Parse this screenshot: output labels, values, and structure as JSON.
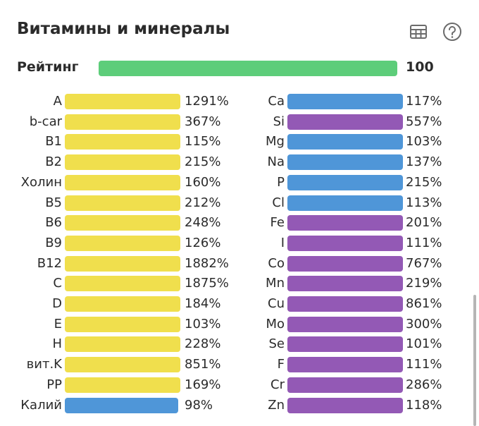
{
  "header": {
    "title": "Витамины и минералы",
    "icons": [
      "table-icon",
      "help-icon"
    ]
  },
  "rating": {
    "label": "Рейтинг",
    "value": "100",
    "fill_percent": 100,
    "color": "#5dcd7a"
  },
  "colors": {
    "vitamin": "#f0df4d",
    "blue_mineral": "#4f96d8",
    "purple_mineral": "#9359b5",
    "text": "#2b2b2b"
  },
  "vitamins": [
    {
      "label": "A",
      "value": "1291%",
      "color": "yellow"
    },
    {
      "label": "b-car",
      "value": "367%",
      "color": "yellow"
    },
    {
      "label": "B1",
      "value": "115%",
      "color": "yellow"
    },
    {
      "label": "B2",
      "value": "215%",
      "color": "yellow"
    },
    {
      "label": "Холин",
      "value": "160%",
      "color": "yellow"
    },
    {
      "label": "B5",
      "value": "212%",
      "color": "yellow"
    },
    {
      "label": "B6",
      "value": "248%",
      "color": "yellow"
    },
    {
      "label": "B9",
      "value": "126%",
      "color": "yellow"
    },
    {
      "label": "B12",
      "value": "1882%",
      "color": "yellow"
    },
    {
      "label": "C",
      "value": "1875%",
      "color": "yellow"
    },
    {
      "label": "D",
      "value": "184%",
      "color": "yellow"
    },
    {
      "label": "E",
      "value": "103%",
      "color": "yellow"
    },
    {
      "label": "H",
      "value": "228%",
      "color": "yellow"
    },
    {
      "label": "вит.K",
      "value": "851%",
      "color": "yellow"
    },
    {
      "label": "PP",
      "value": "169%",
      "color": "yellow"
    },
    {
      "label": "Калий",
      "value": "98%",
      "color": "blue"
    }
  ],
  "minerals": [
    {
      "label": "Ca",
      "value": "117%",
      "color": "blue"
    },
    {
      "label": "Si",
      "value": "557%",
      "color": "purple"
    },
    {
      "label": "Mg",
      "value": "103%",
      "color": "blue"
    },
    {
      "label": "Na",
      "value": "137%",
      "color": "blue"
    },
    {
      "label": "P",
      "value": "215%",
      "color": "blue"
    },
    {
      "label": "Cl",
      "value": "113%",
      "color": "blue"
    },
    {
      "label": "Fe",
      "value": "201%",
      "color": "purple"
    },
    {
      "label": "I",
      "value": "111%",
      "color": "purple"
    },
    {
      "label": "Co",
      "value": "767%",
      "color": "purple"
    },
    {
      "label": "Mn",
      "value": "219%",
      "color": "purple"
    },
    {
      "label": "Cu",
      "value": "861%",
      "color": "purple"
    },
    {
      "label": "Mo",
      "value": "300%",
      "color": "purple"
    },
    {
      "label": "Se",
      "value": "101%",
      "color": "purple"
    },
    {
      "label": "F",
      "value": "111%",
      "color": "purple"
    },
    {
      "label": "Cr",
      "value": "286%",
      "color": "purple"
    },
    {
      "label": "Zn",
      "value": "118%",
      "color": "purple"
    }
  ]
}
